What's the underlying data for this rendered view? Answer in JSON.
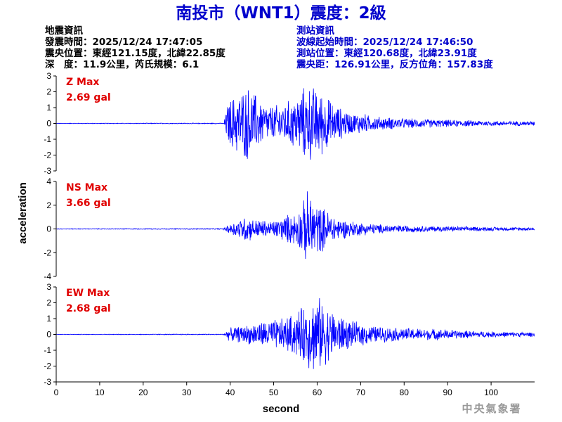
{
  "title": "南投市（WNT1）震度：2級",
  "quake_info": {
    "heading": "地震資訊",
    "time": "發震時間：2025/12/24 17:47:05",
    "epicenter": "震央位置：東經121.15度，北緯22.85度",
    "depth_magnitude": "深　度：11.9公里，芮氏規模：6.1"
  },
  "station_info": {
    "heading": "測站資訊",
    "wave_start": "波線起始時間：2025/12/24 17:46:50",
    "location": "測站位置：東經120.68度，北緯23.91度",
    "distance": "震央距：126.91公里，反方位角：157.83度"
  },
  "credit": "中央氣象署",
  "colors": {
    "title": "#0000cc",
    "waveform": "#0000ff",
    "max_label": "#e00000"
  },
  "chart_data": {
    "type": "line",
    "xlabel": "second",
    "ylabel": "acceleration",
    "xlim": [
      0,
      110
    ],
    "x_ticks": [
      0,
      10,
      20,
      30,
      40,
      50,
      60,
      70,
      80,
      90,
      100
    ],
    "grid": false,
    "panels": [
      {
        "name": "Z",
        "max_label": "Z Max",
        "max_value": "2.69 gal",
        "ylim": [
          -3,
          3
        ],
        "y_ticks": [
          3,
          2,
          1,
          0,
          -1,
          -2,
          -3
        ],
        "envelope": [
          [
            0,
            0.02
          ],
          [
            38.5,
            0.03
          ],
          [
            39.5,
            1.5
          ],
          [
            41,
            2.0
          ],
          [
            42.5,
            2.3
          ],
          [
            44,
            2.6
          ],
          [
            45.5,
            2.2
          ],
          [
            47,
            1.6
          ],
          [
            49,
            1.2
          ],
          [
            51,
            1.3
          ],
          [
            53,
            1.5
          ],
          [
            55,
            1.8
          ],
          [
            57,
            2.5
          ],
          [
            58,
            2.69
          ],
          [
            59.5,
            2.5
          ],
          [
            61,
            2.2
          ],
          [
            62.5,
            1.8
          ],
          [
            64,
            1.3
          ],
          [
            66,
            1.0
          ],
          [
            68,
            0.7
          ],
          [
            70,
            0.75
          ],
          [
            72,
            0.55
          ],
          [
            75,
            0.45
          ],
          [
            80,
            0.35
          ],
          [
            90,
            0.25
          ],
          [
            100,
            0.18
          ],
          [
            110,
            0.15
          ]
        ]
      },
      {
        "name": "NS",
        "max_label": "NS Max",
        "max_value": "3.66 gal",
        "ylim": [
          -4,
          4
        ],
        "y_ticks": [
          4,
          2,
          0,
          -2,
          -4
        ],
        "envelope": [
          [
            0,
            0.03
          ],
          [
            38.5,
            0.05
          ],
          [
            39.5,
            0.4
          ],
          [
            42,
            0.9
          ],
          [
            44,
            1.3
          ],
          [
            45,
            0.9
          ],
          [
            47,
            0.9
          ],
          [
            49,
            0.7
          ],
          [
            51,
            0.9
          ],
          [
            53,
            1.3
          ],
          [
            55,
            1.5
          ],
          [
            56.5,
            2.2
          ],
          [
            58,
            3.66
          ],
          [
            59.5,
            2.5
          ],
          [
            61,
            2.1
          ],
          [
            63,
            1.5
          ],
          [
            65,
            1.0
          ],
          [
            67,
            0.8
          ],
          [
            70,
            0.6
          ],
          [
            75,
            0.4
          ],
          [
            80,
            0.32
          ],
          [
            90,
            0.24
          ],
          [
            100,
            0.18
          ],
          [
            110,
            0.15
          ]
        ]
      },
      {
        "name": "EW",
        "max_label": "EW Max",
        "max_value": "2.68 gal",
        "ylim": [
          -3,
          3
        ],
        "y_ticks": [
          3,
          2,
          1,
          0,
          -1,
          -2,
          -3
        ],
        "envelope": [
          [
            0,
            0.02
          ],
          [
            38.5,
            0.03
          ],
          [
            39.5,
            0.4
          ],
          [
            41,
            0.5
          ],
          [
            43,
            0.6
          ],
          [
            46,
            0.8
          ],
          [
            49,
            1.0
          ],
          [
            52,
            1.1
          ],
          [
            55,
            1.5
          ],
          [
            57,
            2.0
          ],
          [
            58.5,
            2.5
          ],
          [
            60,
            2.68
          ],
          [
            62,
            2.0
          ],
          [
            64,
            1.6
          ],
          [
            66,
            1.2
          ],
          [
            68,
            0.9
          ],
          [
            70,
            0.8
          ],
          [
            73,
            0.6
          ],
          [
            76,
            0.5
          ],
          [
            80,
            0.45
          ],
          [
            85,
            0.4
          ],
          [
            90,
            0.35
          ],
          [
            95,
            0.25
          ],
          [
            100,
            0.2
          ],
          [
            110,
            0.15
          ]
        ]
      }
    ]
  }
}
